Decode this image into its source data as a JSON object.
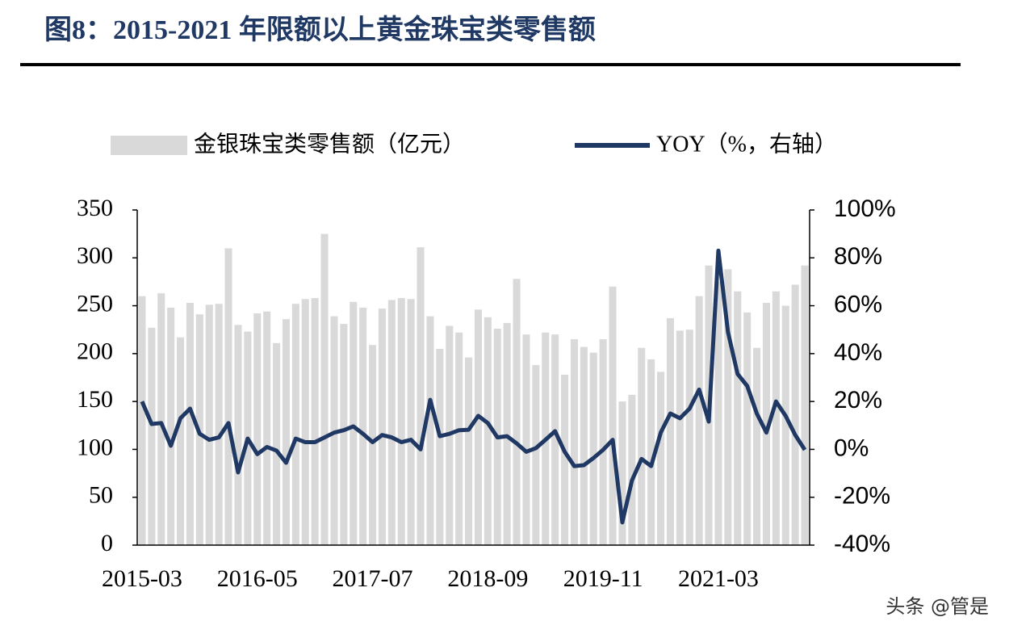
{
  "chart_data": {
    "type": "bar",
    "title": "图8：2015-2021 年限额以上黄金珠宝类零售额",
    "categories": [
      "2015-03",
      null,
      null,
      null,
      null,
      null,
      null,
      null,
      null,
      null,
      null,
      null,
      "2016-05",
      null,
      null,
      null,
      null,
      null,
      null,
      null,
      null,
      null,
      null,
      null,
      "2017-07",
      null,
      null,
      null,
      null,
      null,
      null,
      null,
      null,
      null,
      null,
      null,
      "2018-09",
      null,
      null,
      null,
      null,
      null,
      null,
      null,
      null,
      null,
      null,
      null,
      "2019-11",
      null,
      null,
      null,
      null,
      null,
      null,
      null,
      null,
      null,
      null,
      null,
      "2021-03",
      null,
      null,
      null,
      null,
      null,
      null,
      null,
      null,
      null
    ],
    "series": [
      {
        "name": "金银珠宝类零售额（亿元）",
        "type": "bar",
        "color": "#d9d9d9",
        "values": [
          260,
          227,
          263,
          248,
          217,
          253,
          241,
          251,
          252,
          310,
          230,
          223,
          242,
          244,
          211,
          236,
          252,
          257,
          258,
          325,
          239,
          231,
          254,
          248,
          209,
          247,
          256,
          258,
          257,
          311,
          239,
          205,
          229,
          222,
          196,
          246,
          238,
          226,
          232,
          278,
          220,
          188,
          222,
          220,
          178,
          215,
          207,
          201,
          215,
          270,
          150,
          157,
          206,
          194,
          181,
          237,
          224,
          225,
          260,
          292,
          275,
          288,
          265,
          243,
          206,
          253,
          265,
          250,
          272,
          292
        ]
      },
      {
        "name": "YOY（%，右轴）",
        "type": "line",
        "axis": "y2",
        "color": "#1f3864",
        "values": [
          20,
          10.6,
          11,
          1.5,
          13,
          17,
          6.5,
          4,
          5,
          11,
          -9.6,
          4.5,
          -2,
          1,
          -0.5,
          -5.6,
          4.5,
          3,
          3,
          5,
          7,
          8,
          9.6,
          6.5,
          3,
          6,
          5,
          3,
          4,
          0,
          20.7,
          5.5,
          6.5,
          8,
          8.2,
          14,
          11,
          5,
          5.5,
          2.5,
          -1,
          0.5,
          4,
          7.6,
          -1,
          -7,
          -6.6,
          -3.6,
          -0.2,
          4,
          -30.5,
          -13,
          -4,
          -7,
          7,
          15,
          13,
          17,
          25,
          11.6,
          83,
          49,
          31.5,
          26.5,
          15,
          7,
          20,
          14,
          6,
          -0.2
        ]
      }
    ],
    "ylim": [
      0,
      350
    ],
    "yticks": [
      0,
      50,
      100,
      150,
      200,
      250,
      300,
      350
    ],
    "y2lim": [
      -40,
      100
    ],
    "y2ticks": [
      {
        "value": -40,
        "label": "-40%"
      },
      {
        "value": -20,
        "label": "-20%"
      },
      {
        "value": 0,
        "label": "0%"
      },
      {
        "value": 20,
        "label": "20%"
      },
      {
        "value": 40,
        "label": "40%"
      },
      {
        "value": 60,
        "label": "60%"
      },
      {
        "value": 80,
        "label": "80%"
      },
      {
        "value": 100,
        "label": "100%"
      }
    ],
    "watermark": "头条 @管是"
  }
}
